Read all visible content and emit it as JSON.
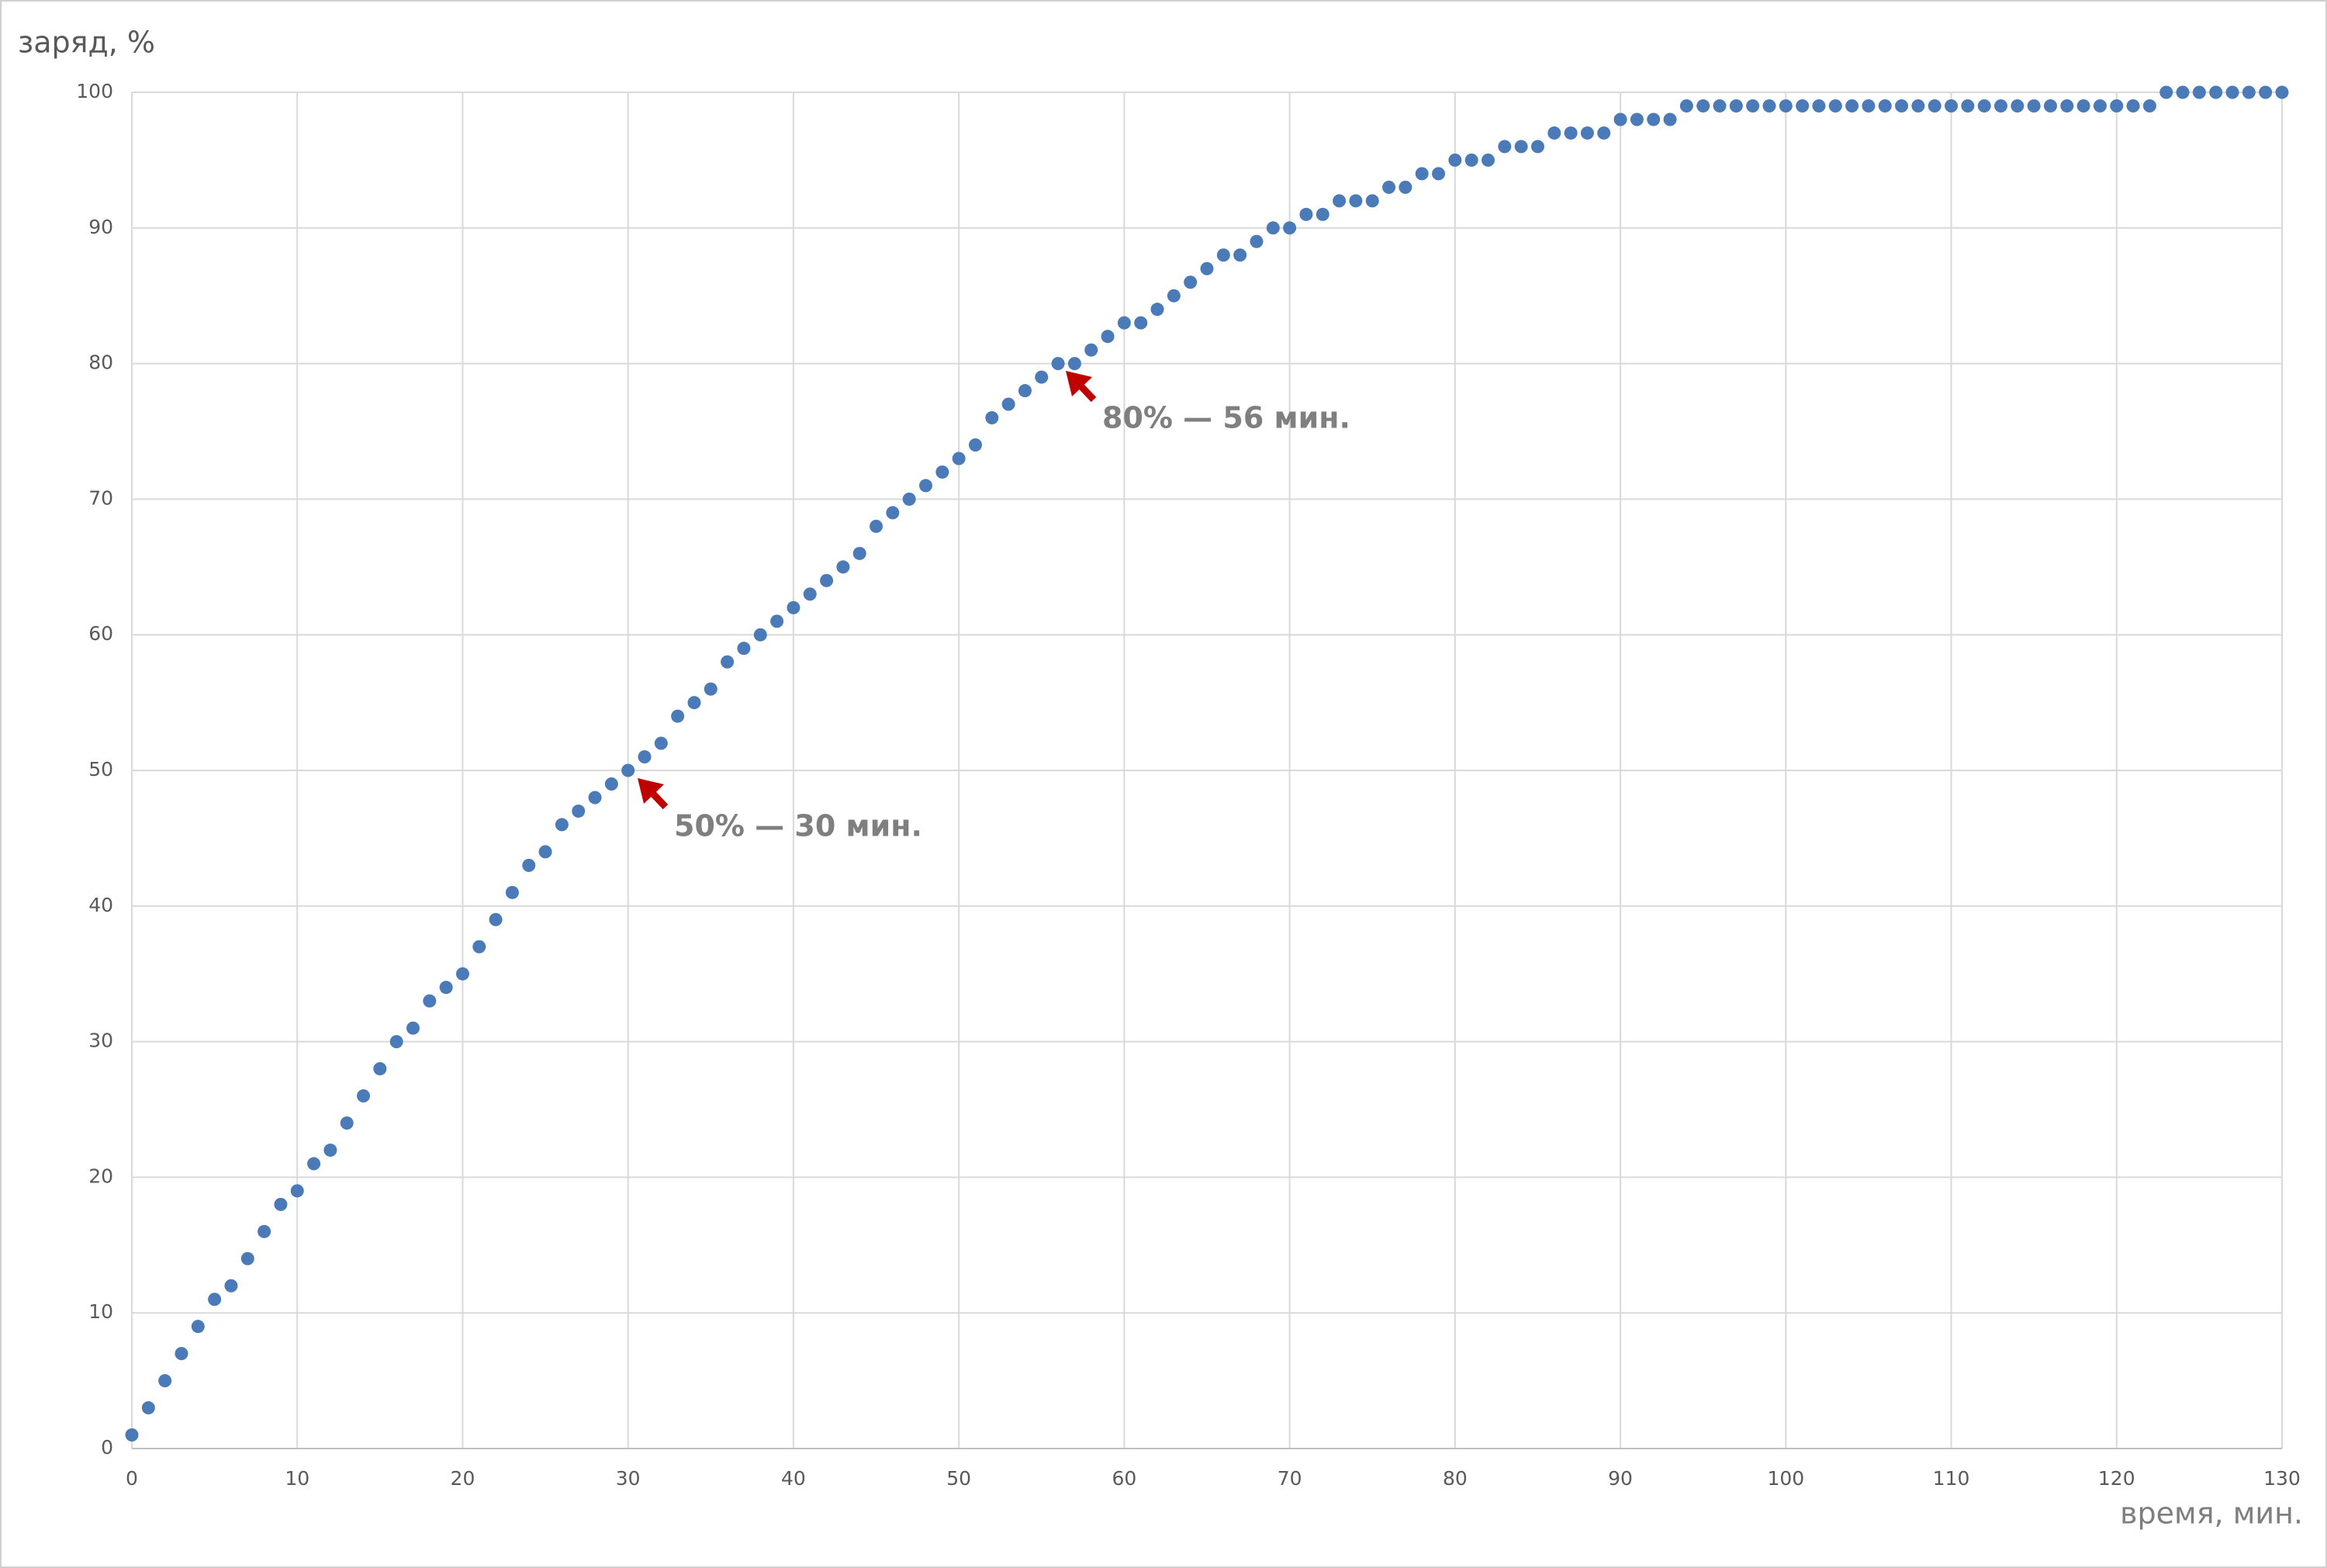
{
  "chart_data": {
    "type": "scatter",
    "y_label": "заряд, %",
    "x_label": "время, мин.",
    "annotations": [
      "80% — 56 мин.",
      "50% — 30 мин."
    ],
    "color": "#4a7ab8",
    "grid": true,
    "xlim": [
      0,
      130
    ],
    "xticks": [
      0,
      10,
      20,
      30,
      40,
      50,
      60,
      70,
      80,
      90,
      100,
      110,
      120,
      130
    ],
    "ylim": [
      0,
      100
    ],
    "yticks": [
      0,
      10,
      20,
      30,
      40,
      50,
      60,
      70,
      80,
      90,
      100
    ],
    "x": [
      0,
      1,
      2,
      3,
      4,
      5,
      6,
      7,
      8,
      9,
      10,
      11,
      12,
      13,
      14,
      15,
      16,
      17,
      18,
      19,
      20,
      21,
      22,
      23,
      24,
      25,
      26,
      27,
      28,
      29,
      30,
      31,
      32,
      33,
      34,
      35,
      36,
      37,
      38,
      39,
      40,
      41,
      42,
      43,
      44,
      45,
      46,
      47,
      48,
      49,
      50,
      51,
      52,
      53,
      54,
      55,
      56,
      57,
      58,
      59,
      60,
      61,
      62,
      63,
      64,
      65,
      66,
      67,
      68,
      69,
      70,
      71,
      72,
      73,
      74,
      75,
      76,
      77,
      78,
      79,
      80,
      81,
      82,
      83,
      84,
      85,
      86,
      87,
      88,
      89,
      90,
      91,
      92,
      93,
      94,
      95,
      96,
      97,
      98,
      99,
      100,
      101,
      102,
      103,
      104,
      105,
      106,
      107,
      108,
      109,
      110,
      111,
      112,
      113,
      114,
      115,
      116,
      117,
      118,
      119,
      120,
      121,
      122,
      123,
      124,
      125,
      126,
      127,
      128,
      129,
      130
    ],
    "values": [
      1,
      3,
      5,
      7,
      9,
      11,
      12,
      14,
      16,
      18,
      19,
      21,
      22,
      24,
      26,
      28,
      30,
      31,
      33,
      34,
      35,
      37,
      39,
      41,
      43,
      44,
      46,
      47,
      48,
      49,
      50,
      51,
      52,
      54,
      55,
      56,
      58,
      59,
      60,
      61,
      62,
      63,
      64,
      65,
      66,
      68,
      69,
      70,
      71,
      72,
      73,
      74,
      76,
      77,
      78,
      79,
      80,
      80,
      81,
      82,
      83,
      83,
      84,
      85,
      86,
      87,
      88,
      88,
      89,
      90,
      90,
      91,
      91,
      92,
      92,
      92,
      93,
      93,
      94,
      94,
      95,
      95,
      95,
      96,
      96,
      96,
      97,
      97,
      97,
      97,
      98,
      98,
      98,
      98,
      99,
      99,
      99,
      99,
      99,
      99,
      99,
      99,
      99,
      99,
      99,
      99,
      99,
      99,
      99,
      99,
      99,
      99,
      99,
      99,
      99,
      99,
      99,
      99,
      99,
      99,
      99,
      99,
      99,
      100,
      100,
      100,
      100,
      100,
      100,
      100,
      100
    ]
  }
}
